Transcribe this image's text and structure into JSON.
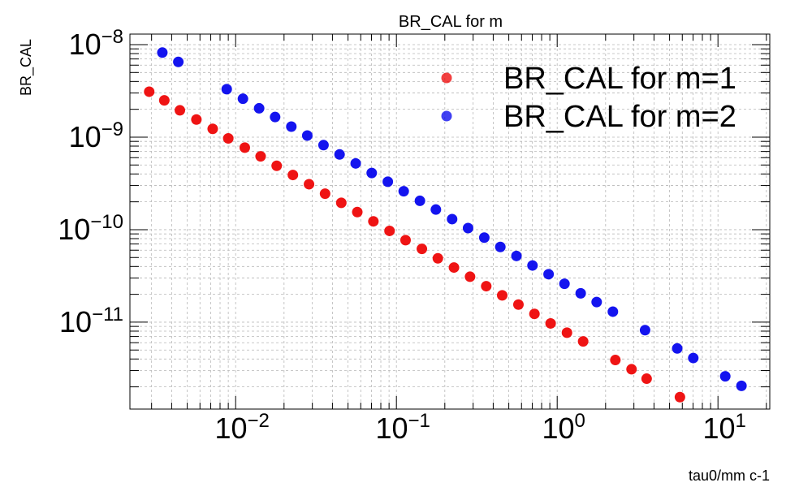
{
  "chart_data": {
    "type": "scatter",
    "title": "BR_CAL for m",
    "xlabel": "tau0/mm c-1",
    "ylabel": "BR_CAL",
    "xscale": "log",
    "yscale": "log",
    "xlim": [
      0.0022,
      21
    ],
    "ylim": [
      1.15e-12,
      1.3e-08
    ],
    "x_ticks": [
      {
        "value": 0.01,
        "base": "10",
        "exp": "−2"
      },
      {
        "value": 0.1,
        "base": "10",
        "exp": "−1"
      },
      {
        "value": 1,
        "base": "10",
        "exp": "0"
      },
      {
        "value": 10,
        "base": "10",
        "exp": "1"
      }
    ],
    "y_ticks": [
      {
        "value": 1e-11,
        "base": "10",
        "exp": "−11"
      },
      {
        "value": 1e-10,
        "base": "10",
        "exp": "−10"
      },
      {
        "value": 1e-09,
        "base": "10",
        "exp": "−9"
      },
      {
        "value": 1e-08,
        "base": "10",
        "exp": "−8"
      }
    ],
    "grid": true,
    "legend_position": "top-right",
    "series": [
      {
        "name": "BR_CAL for m=1",
        "color": "#ee0000",
        "points": [
          [
            0.0029,
            3.1e-09
          ],
          [
            0.0036,
            2.5e-09
          ],
          [
            0.0045,
            1.95e-09
          ],
          [
            0.0057,
            1.55e-09
          ],
          [
            0.0072,
            1.23e-09
          ],
          [
            0.009,
            9.7e-10
          ],
          [
            0.0114,
            7.7e-10
          ],
          [
            0.0143,
            6.2e-10
          ],
          [
            0.018,
            4.9e-10
          ],
          [
            0.0227,
            3.9e-10
          ],
          [
            0.0286,
            3.1e-10
          ],
          [
            0.036,
            2.45e-10
          ],
          [
            0.0454,
            1.95e-10
          ],
          [
            0.0571,
            1.55e-10
          ],
          [
            0.0719,
            1.23e-10
          ],
          [
            0.0906,
            9.7e-11
          ],
          [
            0.114,
            7.7e-11
          ],
          [
            0.144,
            6.2e-11
          ],
          [
            0.181,
            4.9e-11
          ],
          [
            0.228,
            3.9e-11
          ],
          [
            0.287,
            3.1e-11
          ],
          [
            0.362,
            2.45e-11
          ],
          [
            0.455,
            1.95e-11
          ],
          [
            0.574,
            1.55e-11
          ],
          [
            0.722,
            1.23e-11
          ],
          [
            0.91,
            9.7e-12
          ],
          [
            1.15,
            7.7e-12
          ],
          [
            1.45,
            6.2e-12
          ],
          [
            2.3,
            3.9e-12
          ],
          [
            2.9,
            3.1e-12
          ],
          [
            3.6,
            2.45e-12
          ],
          [
            5.8,
            1.55e-12
          ]
        ]
      },
      {
        "name": "BR_CAL for m=2",
        "color": "#0000ee",
        "points": [
          [
            0.0035,
            8.2e-09
          ],
          [
            0.0044,
            6.5e-09
          ],
          [
            0.0088,
            3.3e-09
          ],
          [
            0.0111,
            2.6e-09
          ],
          [
            0.014,
            2.05e-09
          ],
          [
            0.0176,
            1.65e-09
          ],
          [
            0.0222,
            1.3e-09
          ],
          [
            0.0279,
            1.04e-09
          ],
          [
            0.0352,
            8.2e-10
          ],
          [
            0.0443,
            6.5e-10
          ],
          [
            0.0558,
            5.2e-10
          ],
          [
            0.0702,
            4.1e-10
          ],
          [
            0.0884,
            3.3e-10
          ],
          [
            0.111,
            2.6e-10
          ],
          [
            0.14,
            2.05e-10
          ],
          [
            0.176,
            1.65e-10
          ],
          [
            0.222,
            1.3e-10
          ],
          [
            0.279,
            1.04e-10
          ],
          [
            0.352,
            8.2e-11
          ],
          [
            0.443,
            6.5e-11
          ],
          [
            0.558,
            5.2e-11
          ],
          [
            0.702,
            4.1e-11
          ],
          [
            0.884,
            3.3e-11
          ],
          [
            1.11,
            2.6e-11
          ],
          [
            1.4,
            2.05e-11
          ],
          [
            1.76,
            1.65e-11
          ],
          [
            2.22,
            1.3e-11
          ],
          [
            3.52,
            8.2e-12
          ],
          [
            5.58,
            5.2e-12
          ],
          [
            7.02,
            4.1e-12
          ],
          [
            11.1,
            2.6e-12
          ],
          [
            14.0,
            2.05e-12
          ]
        ]
      }
    ]
  }
}
